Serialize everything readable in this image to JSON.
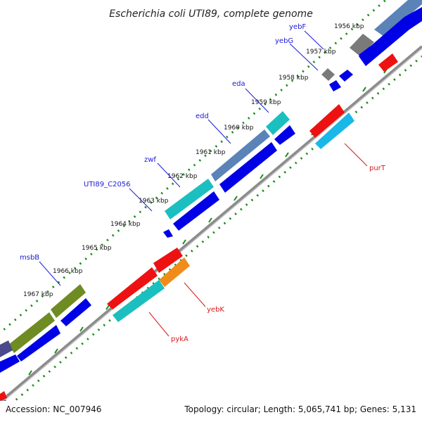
{
  "title": "Escherichia coli UTI89, complete genome",
  "footer": {
    "accession": "Accession: NC_007946",
    "topology": "Topology: circular; Length: 5,065,741 bp; Genes: 5,131"
  },
  "colors": {
    "backbone": "#8c8c8c",
    "tick": "#1a8a1a",
    "label_blue": "#1a1ad6",
    "label_red": "#d61a1a"
  },
  "kbp_labels": [
    "1956 kbp",
    "1957 kbp",
    "1958 kbp",
    "1959 kbp",
    "1960 kbp",
    "1961 kbp",
    "1962 kbp",
    "1963 kbp",
    "1964 kbp",
    "1965 kbp",
    "1966 kbp",
    "1967 kbp"
  ],
  "gene_labels": {
    "yebF": "yebF",
    "yebG": "yebG",
    "eda": "eda",
    "edd": "edd",
    "zwf": "zwf",
    "UTI89_C2056": "UTI89_C2056",
    "msbB": "msbB",
    "purT": "purT",
    "yebK": "yebK",
    "pykA": "pykA"
  }
}
